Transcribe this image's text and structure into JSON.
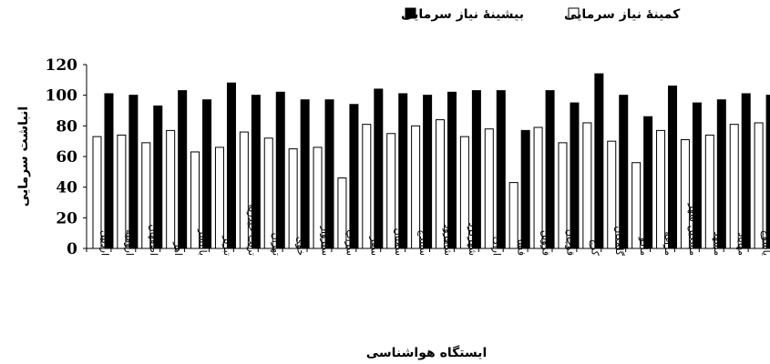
{
  "chart_data": {
    "type": "bar",
    "xlabel": "ایستگاه هواشناسی",
    "ylabel": "انباشت سرمایی",
    "ylim": [
      0,
      120
    ],
    "yticks": [
      0,
      20,
      40,
      60,
      80,
      100,
      120
    ],
    "grid": false,
    "legend_position": "top",
    "categories": [
      "اردبیل",
      "ارومیه",
      "اصفهان",
      "اهر",
      "بابلسر",
      "تبریز",
      "تربت حیدریه",
      "تهران",
      "خوی",
      "سبزوار",
      "سراب",
      "سقز",
      "سمنان",
      "سنندج",
      "شاهرود",
      "شهرکرد",
      "اراک",
      "فسا",
      "قزوین",
      "قوچان",
      "کرج",
      "گلمکان",
      "ماکو",
      "مراغه",
      "مشگین شهر",
      "مشهد",
      "مهاباد",
      "یاسوج"
    ],
    "series": [
      {
        "name": "کمینۀ نیاز سرمایی",
        "color": "#ffffff",
        "values": [
          73,
          74,
          69,
          77,
          63,
          66,
          76,
          72,
          65,
          66,
          46,
          81,
          75,
          80,
          84,
          73,
          78,
          43,
          79,
          69,
          82,
          70,
          56,
          77,
          71,
          74,
          81,
          82
        ]
      },
      {
        "name": "بیشینۀ نیاز سرمایی",
        "color": "#000000",
        "values": [
          101,
          100,
          93,
          103,
          97,
          108,
          100,
          102,
          97,
          97,
          94,
          104,
          101,
          100,
          102,
          103,
          103,
          77,
          103,
          95,
          114,
          100,
          86,
          106,
          95,
          97,
          101,
          100
        ]
      }
    ]
  }
}
